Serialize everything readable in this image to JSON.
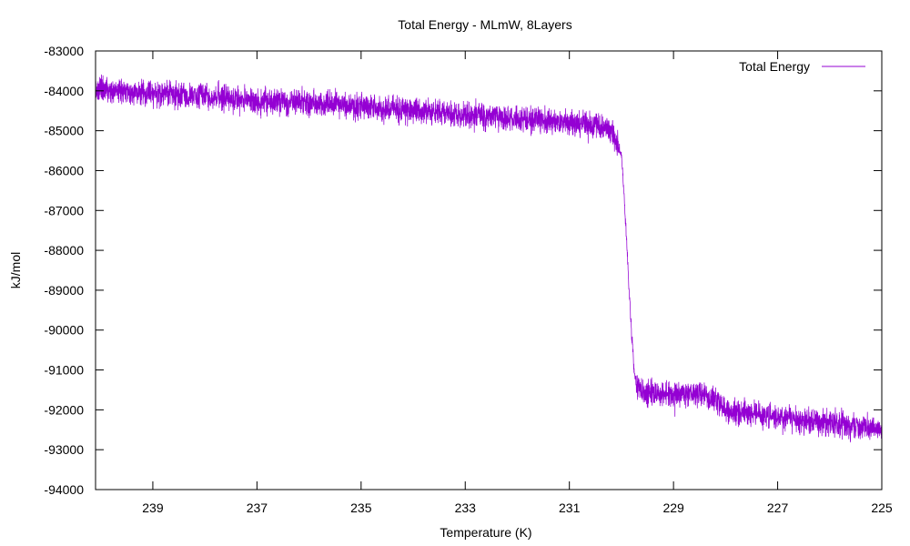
{
  "chart_data": {
    "type": "line",
    "title": "Total Energy - MLmW, 8Layers",
    "xlabel": "Temperature (K)",
    "ylabel": "kJ/mol",
    "xlim": [
      240.1,
      225
    ],
    "x_reversed": true,
    "ylim": [
      -94000,
      -83000
    ],
    "xticks": [
      239,
      237,
      235,
      233,
      231,
      229,
      227,
      225
    ],
    "yticks": [
      -94000,
      -93000,
      -92000,
      -91000,
      -90000,
      -89000,
      -88000,
      -87000,
      -86000,
      -85000,
      -84000,
      -83000
    ],
    "grid": false,
    "legend_position": "top-right",
    "series": [
      {
        "name": "Total Energy",
        "color": "#9400d3",
        "noise_amplitude": 350,
        "points": [
          {
            "x": 240.1,
            "y": -83950
          },
          {
            "x": 239.0,
            "y": -84050
          },
          {
            "x": 238.0,
            "y": -84150
          },
          {
            "x": 237.0,
            "y": -84250
          },
          {
            "x": 236.0,
            "y": -84300
          },
          {
            "x": 235.0,
            "y": -84400
          },
          {
            "x": 234.0,
            "y": -84500
          },
          {
            "x": 233.0,
            "y": -84600
          },
          {
            "x": 232.0,
            "y": -84700
          },
          {
            "x": 231.0,
            "y": -84800
          },
          {
            "x": 230.5,
            "y": -84850
          },
          {
            "x": 230.2,
            "y": -85000
          },
          {
            "x": 230.0,
            "y": -85600
          },
          {
            "x": 229.95,
            "y": -86600
          },
          {
            "x": 229.9,
            "y": -87800
          },
          {
            "x": 229.85,
            "y": -89000
          },
          {
            "x": 229.8,
            "y": -90200
          },
          {
            "x": 229.75,
            "y": -91100
          },
          {
            "x": 229.7,
            "y": -91450
          },
          {
            "x": 229.5,
            "y": -91550
          },
          {
            "x": 229.0,
            "y": -91600
          },
          {
            "x": 228.5,
            "y": -91550
          },
          {
            "x": 228.2,
            "y": -91750
          },
          {
            "x": 228.0,
            "y": -92000
          },
          {
            "x": 227.0,
            "y": -92200
          },
          {
            "x": 226.0,
            "y": -92350
          },
          {
            "x": 225.0,
            "y": -92500
          }
        ]
      }
    ]
  }
}
